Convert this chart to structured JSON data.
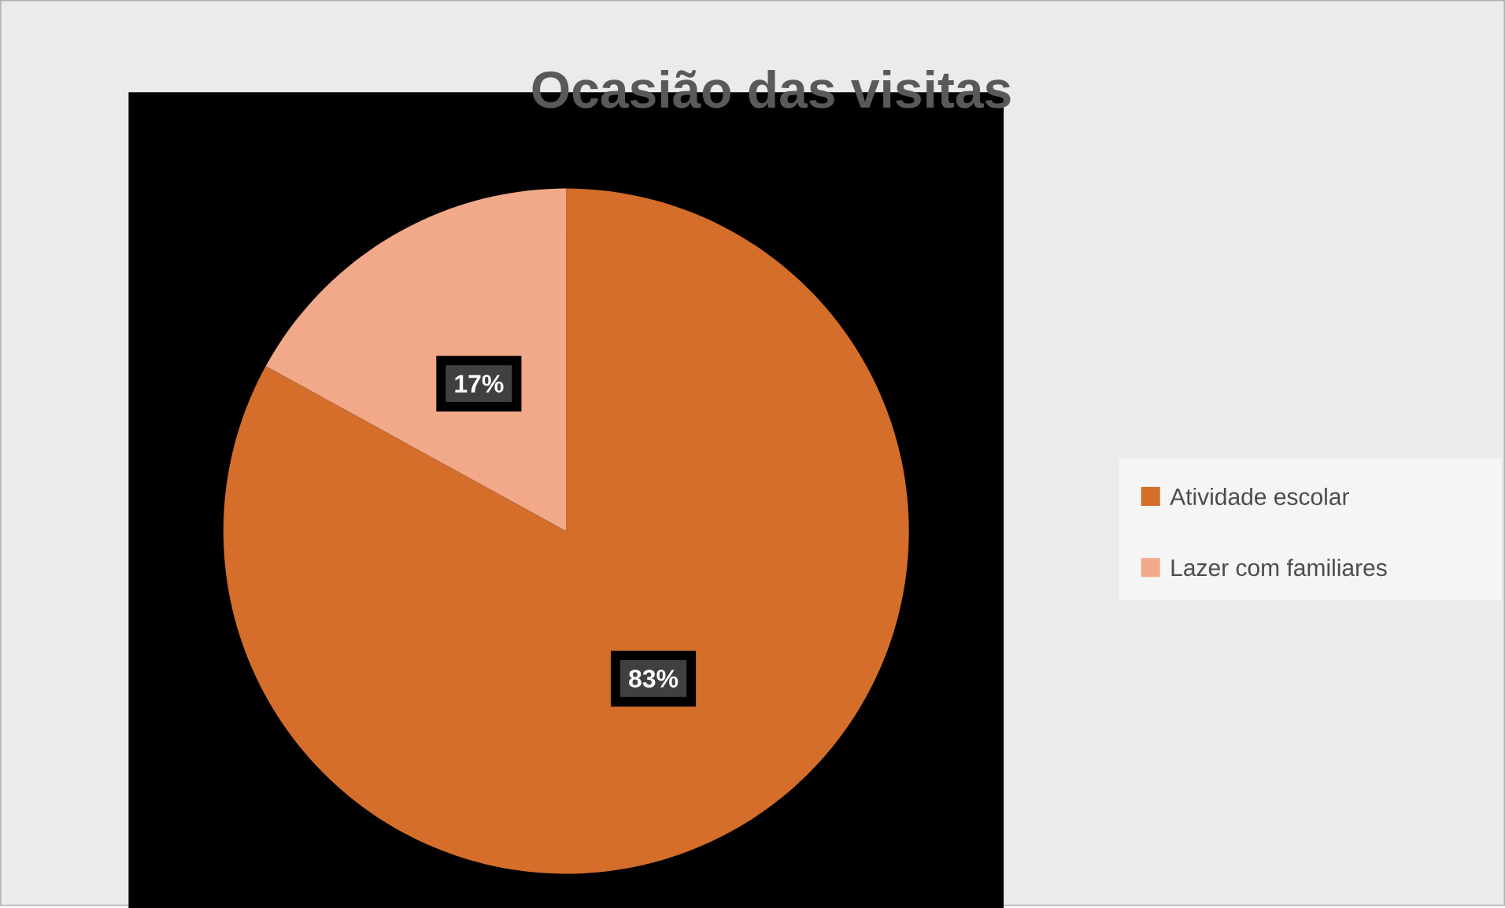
{
  "chart_data": {
    "type": "pie",
    "title": "Ocasião das visitas",
    "categories": [
      "Atividade escolar",
      "Lazer com familiares"
    ],
    "values": [
      83,
      17
    ],
    "colors": [
      "#d46e2a",
      "#f2a98a"
    ],
    "value_labels": [
      "83%",
      "17%"
    ],
    "legend": "right"
  }
}
